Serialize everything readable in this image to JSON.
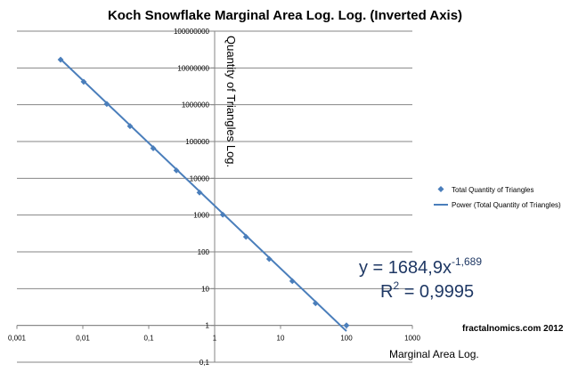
{
  "chart_data": {
    "type": "scatter",
    "title": "Koch Snowflake Marginal Area Log. Log. (Inverted Axis)",
    "xlabel": "Marginal  Area Log.",
    "ylabel": "Quantity of Triangles Log.",
    "x_scale": "log",
    "y_scale": "log",
    "xlim": [
      0.001,
      1000
    ],
    "ylim": [
      0.1,
      100000000
    ],
    "x_ticks": [
      "0,001",
      "0,01",
      "0,1",
      "1",
      "10",
      "100",
      "1000"
    ],
    "y_ticks": [
      "0,1",
      "1",
      "10",
      "100",
      "1000",
      "10000",
      "100000",
      "1000000",
      "10000000",
      "100000000"
    ],
    "grid": "horizontal",
    "legend_position": "right",
    "series": [
      {
        "name": "Total Quantity of Triangles",
        "color": "#4a7ebb",
        "marker": "diamond",
        "x": [
          0.0046,
          0.0103,
          0.0231,
          0.052,
          0.117,
          0.263,
          0.59,
          1.33,
          2.99,
          6.73,
          15.1,
          34.0,
          100
        ],
        "y": [
          16777216,
          4194304,
          1048576,
          262144,
          65536,
          16384,
          4096,
          1024,
          256,
          64,
          16,
          4,
          1
        ]
      },
      {
        "name": "Power (Total Quantity of Triangles)",
        "color": "#4a7ebb",
        "type": "trendline",
        "x": [
          0.0046,
          100
        ],
        "y": [
          17302000,
          0.7
        ]
      }
    ],
    "annotations": {
      "equation_prefix": "y = 1684,9x",
      "equation_exponent": "-1,689",
      "r2_prefix": "R",
      "r2_exponent": "2",
      "r2_value": " = 0,9995",
      "credit": "fractalnomics.com 2012"
    }
  }
}
